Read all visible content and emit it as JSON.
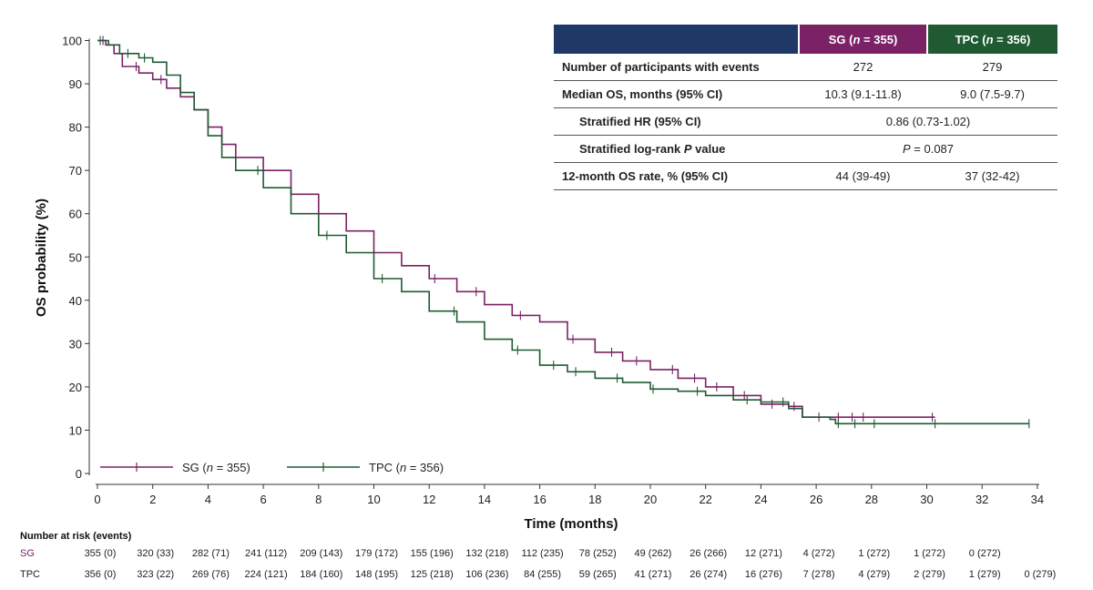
{
  "chart_data": {
    "type": "line",
    "subtype": "kaplan-meier",
    "xlabel": "Time (months)",
    "ylabel": "OS probability (%)",
    "xlim": [
      0,
      34
    ],
    "ylim": [
      0,
      100
    ],
    "x_ticks": [
      0,
      2,
      4,
      6,
      8,
      10,
      12,
      14,
      16,
      18,
      20,
      22,
      24,
      26,
      28,
      30,
      32,
      34
    ],
    "y_ticks": [
      0,
      10,
      20,
      30,
      40,
      50,
      60,
      70,
      80,
      90,
      100
    ],
    "legend_position": "bottom-left",
    "colors": {
      "sg": "#7b2266",
      "tpc": "#1f5a33",
      "header_blank": "#1f3866"
    },
    "series": [
      {
        "key": "sg",
        "name": "SG",
        "legend_n": "355",
        "points": [
          [
            0,
            100
          ],
          [
            0.3,
            99
          ],
          [
            0.6,
            97
          ],
          [
            0.9,
            94
          ],
          [
            1.5,
            92.5
          ],
          [
            2,
            91
          ],
          [
            2.5,
            89
          ],
          [
            3,
            87
          ],
          [
            3.5,
            84
          ],
          [
            4,
            80
          ],
          [
            4.5,
            76
          ],
          [
            5,
            73
          ],
          [
            6,
            70
          ],
          [
            7,
            64.5
          ],
          [
            8,
            60
          ],
          [
            9,
            56
          ],
          [
            10,
            51
          ],
          [
            11,
            48
          ],
          [
            12,
            45
          ],
          [
            13,
            42
          ],
          [
            14,
            39
          ],
          [
            15,
            36.5
          ],
          [
            16,
            35
          ],
          [
            17,
            31
          ],
          [
            18,
            28
          ],
          [
            19,
            26
          ],
          [
            20,
            24
          ],
          [
            21,
            22
          ],
          [
            22,
            20
          ],
          [
            23,
            18
          ],
          [
            24,
            16
          ],
          [
            25,
            15.5
          ],
          [
            25.5,
            15.5
          ],
          [
            25.5,
            13
          ],
          [
            30.3,
            13
          ]
        ],
        "censor_x": [
          0.2,
          1.4,
          2.3,
          12.2,
          13.7,
          15.3,
          17.2,
          18.6,
          19.5,
          20.8,
          21.6,
          22.4,
          23.4,
          24.4,
          25.2,
          26.1,
          26.8,
          27.3,
          27.7,
          30.2
        ]
      },
      {
        "key": "tpc",
        "name": "TPC",
        "legend_n": "356",
        "points": [
          [
            0,
            100
          ],
          [
            0.4,
            99
          ],
          [
            0.8,
            97
          ],
          [
            1.5,
            96
          ],
          [
            2,
            95
          ],
          [
            2.5,
            92
          ],
          [
            3,
            88
          ],
          [
            3.5,
            84
          ],
          [
            4,
            78
          ],
          [
            4.5,
            73
          ],
          [
            5,
            70
          ],
          [
            6,
            66
          ],
          [
            7,
            60
          ],
          [
            8,
            55
          ],
          [
            9,
            51
          ],
          [
            10,
            45
          ],
          [
            11,
            42
          ],
          [
            12,
            37.5
          ],
          [
            13,
            35
          ],
          [
            14,
            31
          ],
          [
            15,
            28.5
          ],
          [
            16,
            25
          ],
          [
            17,
            23.5
          ],
          [
            18,
            22
          ],
          [
            19,
            21
          ],
          [
            20,
            19.5
          ],
          [
            21,
            19
          ],
          [
            22,
            18
          ],
          [
            23,
            17
          ],
          [
            24,
            16.5
          ],
          [
            25,
            15
          ],
          [
            25.5,
            15
          ],
          [
            25.5,
            13
          ],
          [
            26.5,
            12.5
          ],
          [
            26.7,
            11.5
          ],
          [
            33.7,
            11.5
          ]
        ],
        "censor_x": [
          0.1,
          1.1,
          1.7,
          5.8,
          8.3,
          10.3,
          12.9,
          15.2,
          16.5,
          17.3,
          18.8,
          20.1,
          21.7,
          23.5,
          24.8,
          26.8,
          27.4,
          28.1,
          30.3,
          33.7
        ]
      }
    ],
    "risk_table": {
      "title": "Number at risk (events)",
      "rows": [
        {
          "key": "sg",
          "label": "SG",
          "values": [
            "355 (0)",
            "320 (33)",
            "282 (71)",
            "241 (112)",
            "209 (143)",
            "179 (172)",
            "155 (196)",
            "132 (218)",
            "112 (235)",
            "78 (252)",
            "49 (262)",
            "26 (266)",
            "12 (271)",
            "4 (272)",
            "1 (272)",
            "1 (272)",
            "0 (272)"
          ]
        },
        {
          "key": "tpc",
          "label": "TPC",
          "values": [
            "356 (0)",
            "323 (22)",
            "269 (76)",
            "224 (121)",
            "184 (160)",
            "148 (195)",
            "125 (218)",
            "106 (236)",
            "84 (255)",
            "59 (265)",
            "41 (271)",
            "26 (274)",
            "16 (276)",
            "7 (278)",
            "4 (279)",
            "2 (279)",
            "1 (279)",
            "0 (279)"
          ]
        }
      ]
    }
  },
  "summary_table": {
    "header": {
      "sg": {
        "name": "SG",
        "n_prefix": "n",
        "n_text": " = 355"
      },
      "tpc": {
        "name": "TPC",
        "n_prefix": "n",
        "n_text": " = 356"
      }
    },
    "rows": {
      "events": {
        "label": "Number of participants with events",
        "sg": "272",
        "tpc": "279"
      },
      "median": {
        "label": "Median OS, months (95% CI)",
        "sg": "10.3 (9.1-11.8)",
        "tpc": "9.0 (7.5-9.7)"
      },
      "hr": {
        "label": "Stratified HR (95% CI)",
        "value": "0.86 (0.73-1.02)"
      },
      "logrank": {
        "label_pre": "Stratified log-rank ",
        "label_italic": "P",
        "label_post": " value",
        "value_italic": "P",
        "value_text": " = 0.087"
      },
      "rate12": {
        "label": "12-month OS rate, % (95% CI)",
        "sg": "44 (39-49)",
        "tpc": "37 (32-42)"
      }
    }
  }
}
